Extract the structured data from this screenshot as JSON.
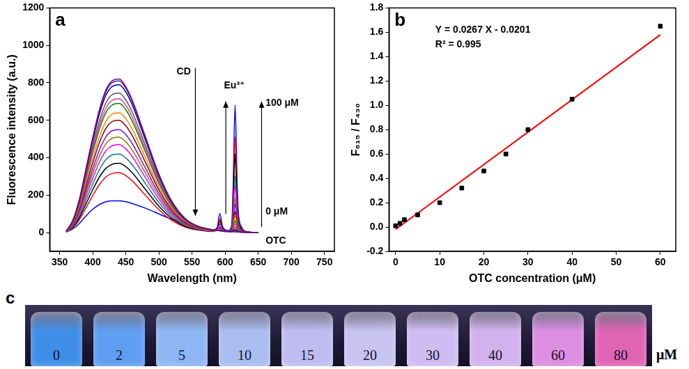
{
  "chart_data": [
    {
      "type": "line",
      "panel": "a",
      "grid": false,
      "x_label": "Wavelength (nm)",
      "y_label": "Fluorescence intensity (a.u.)",
      "xlim": [
        335,
        765
      ],
      "xticks": [
        350,
        400,
        450,
        500,
        550,
        600,
        650,
        700,
        750
      ],
      "ylim": [
        -100,
        1200
      ],
      "yticks": [
        0,
        200,
        400,
        600,
        800,
        1000,
        1200
      ],
      "annotations": [
        "CD",
        "Eu³⁺",
        "100 μM",
        "0 μM",
        "OTC"
      ],
      "x": [
        360,
        370,
        380,
        390,
        400,
        410,
        420,
        430,
        440,
        450,
        460,
        480,
        500,
        520,
        540,
        560,
        580,
        588,
        592,
        596,
        605,
        610,
        612,
        615,
        618,
        620,
        625,
        630,
        650
      ],
      "series": [
        {
          "color": "#800080",
          "values": [
            8,
            66,
            180,
            344,
            508,
            656,
            763,
            812,
            820,
            779,
            705,
            508,
            312,
            164,
            74,
            33,
            16,
            12,
            10,
            8,
            7,
            5,
            4,
            4,
            3,
            3,
            2,
            2,
            0
          ]
        },
        {
          "color": "#3a2aa0",
          "values": [
            8,
            65,
            178,
            340,
            502,
            648,
            753,
            802,
            810,
            770,
            697,
            502,
            308,
            162,
            73,
            32,
            16,
            12,
            11,
            8,
            6,
            5,
            6,
            9,
            5,
            4,
            2,
            2,
            0
          ]
        },
        {
          "color": "#000080",
          "values": [
            8,
            63,
            174,
            332,
            490,
            632,
            735,
            782,
            790,
            751,
            679,
            490,
            300,
            158,
            71,
            32,
            16,
            12,
            11,
            8,
            6,
            6,
            8,
            16,
            8,
            5,
            2,
            2,
            0
          ]
        },
        {
          "color": "#555555",
          "values": [
            7,
            60,
            164,
            313,
            462,
            596,
            693,
            738,
            745,
            708,
            641,
            462,
            283,
            149,
            67,
            30,
            15,
            12,
            13,
            8,
            6,
            6,
            13,
            29,
            13,
            7,
            3,
            1,
            0
          ]
        },
        {
          "color": "#ff3399",
          "values": [
            7,
            57,
            157,
            300,
            443,
            572,
            665,
            708,
            715,
            679,
            615,
            443,
            272,
            143,
            64,
            29,
            14,
            12,
            15,
            9,
            6,
            6,
            18,
            44,
            19,
            9,
            4,
            1,
            0
          ]
        },
        {
          "color": "#008000",
          "values": [
            7,
            55,
            152,
            290,
            428,
            552,
            642,
            683,
            690,
            656,
            593,
            428,
            262,
            138,
            62,
            28,
            14,
            12,
            16,
            9,
            7,
            8,
            24,
            63,
            27,
            12,
            4,
            2,
            0
          ]
        },
        {
          "color": "#ff8000",
          "values": [
            6,
            51,
            141,
            269,
            397,
            512,
            595,
            634,
            640,
            608,
            550,
            397,
            243,
            128,
            58,
            26,
            13,
            13,
            20,
            9,
            6,
            9,
            33,
            88,
            37,
            16,
            5,
            2,
            0
          ]
        },
        {
          "color": "#800000",
          "values": [
            6,
            48,
            132,
            252,
            372,
            480,
            558,
            594,
            600,
            570,
            516,
            372,
            228,
            120,
            54,
            24,
            12,
            12,
            22,
            10,
            6,
            11,
            42,
            113,
            46,
            19,
            6,
            2,
            0
          ]
        },
        {
          "color": "#8000ff",
          "values": [
            6,
            44,
            121,
            231,
            341,
            440,
            512,
            545,
            550,
            523,
            473,
            341,
            209,
            110,
            50,
            22,
            11,
            13,
            28,
            12,
            6,
            12,
            56,
            153,
            62,
            25,
            8,
            3,
            0
          ]
        },
        {
          "color": "#808000",
          "values": [
            5,
            41,
            112,
            214,
            316,
            408,
            474,
            505,
            510,
            485,
            439,
            316,
            194,
            102,
            46,
            20,
            10,
            13,
            31,
            12,
            6,
            14,
            66,
            183,
            74,
            29,
            9,
            3,
            0
          ]
        },
        {
          "color": "#ff00ff",
          "values": [
            5,
            38,
            103,
            197,
            291,
            376,
            437,
            465,
            470,
            447,
            404,
            291,
            179,
            94,
            42,
            19,
            9,
            15,
            41,
            15,
            7,
            18,
            90,
            252,
            102,
            40,
            11,
            4,
            0
          ]
        },
        {
          "color": "#008080",
          "values": [
            4,
            34,
            92,
            176,
            260,
            336,
            391,
            416,
            420,
            399,
            361,
            260,
            160,
            84,
            38,
            17,
            8,
            15,
            47,
            16,
            6,
            21,
            107,
            302,
            122,
            47,
            13,
            4,
            0
          ]
        },
        {
          "color": "#000000",
          "values": [
            4,
            30,
            81,
            155,
            229,
            296,
            344,
            366,
            370,
            352,
            318,
            229,
            141,
            74,
            33,
            15,
            7,
            19,
            63,
            21,
            7,
            27,
            149,
            422,
            169,
            64,
            18,
            5,
            0
          ]
        },
        {
          "color": "#ff0000",
          "values": [
            3,
            26,
            70,
            134,
            198,
            256,
            298,
            317,
            320,
            304,
            275,
            198,
            122,
            64,
            29,
            13,
            6,
            20,
            75,
            23,
            8,
            33,
            181,
            512,
            205,
            78,
            21,
            6,
            0
          ]
        },
        {
          "color": "#0000ff",
          "values": [
            3,
            20,
            50,
            90,
            125,
            150,
            165,
            170,
            170,
            165,
            155,
            130,
            100,
            70,
            45,
            25,
            12,
            28,
            102,
            33,
            11,
            44,
            241,
            682,
            274,
            104,
            28,
            8,
            0
          ]
        }
      ]
    },
    {
      "type": "scatter",
      "panel": "b",
      "grid": false,
      "x_label": "OTC concentration (μM)",
      "y_label": "F₆₁₅ / F₄₃₀",
      "xlim": [
        -1.5,
        63.5
      ],
      "xticks": [
        0,
        10,
        20,
        30,
        40,
        50,
        60
      ],
      "ylim": [
        -0.2,
        1.8
      ],
      "yticks": [
        -0.2,
        {
          "value": 0,
          "label": "0.0"
        },
        0.2,
        0.4,
        0.6,
        0.8,
        {
          "value": 1,
          "label": "1.0"
        },
        1.2,
        1.4,
        1.6,
        1.8
      ],
      "annotations": [
        "Y = 0.0267 X - 0.0201",
        "R² = 0.995"
      ],
      "series": [
        {
          "type": "scatter",
          "color": "#000000",
          "marker": "square",
          "x": [
            0,
            1,
            2,
            5,
            10,
            15,
            20,
            25,
            30,
            40,
            60
          ],
          "values": [
            0.01,
            0.03,
            0.06,
            0.1,
            0.2,
            0.32,
            0.46,
            0.6,
            0.8,
            1.05,
            1.65
          ]
        },
        {
          "type": "line",
          "color": "#ff0000",
          "x": [
            0,
            60
          ],
          "values": [
            -0.02,
            1.58
          ]
        }
      ]
    }
  ],
  "panel_c": {
    "panel": "c",
    "values": [
      0,
      2,
      5,
      10,
      15,
      20,
      30,
      40,
      60,
      80
    ],
    "unit": "μM",
    "colors": [
      "#3f8fe8",
      "#5f9ef0",
      "#8fb6f2",
      "#a9bdf0",
      "#bfbdf0",
      "#c9c3f2",
      "#cfbcf0",
      "#d2b2ee",
      "#dc8ee0",
      "#e064b4"
    ]
  }
}
